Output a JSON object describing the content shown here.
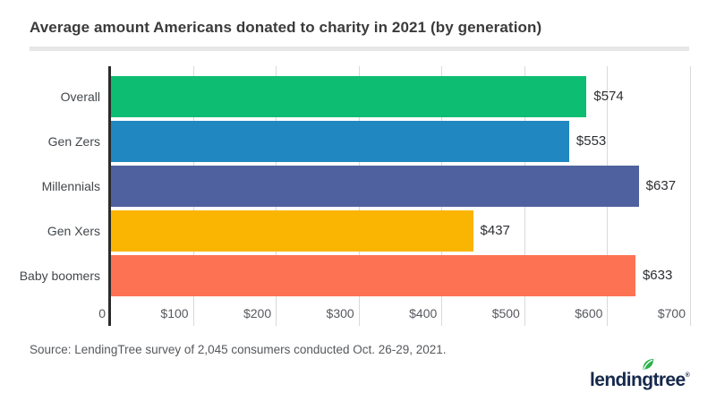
{
  "source_note": "Source: LendingTree survey of 2,045 consumers conducted Oct. 26-29, 2021.",
  "logo": {
    "text": "lendingtree",
    "registered": "®",
    "leaf_icon": "leaf-icon",
    "wordmark_color": "#16294c",
    "leaf_color": "#2bb24c"
  },
  "chart_data": {
    "type": "bar",
    "orientation": "horizontal",
    "title": "Average amount Americans donated to charity in 2021 (by generation)",
    "categories": [
      "Overall",
      "Gen Zers",
      "Millennials",
      "Gen Xers",
      "Baby boomers"
    ],
    "values": [
      574,
      553,
      637,
      437,
      633
    ],
    "value_labels": [
      "$574",
      "$553",
      "$637",
      "$437",
      "$633"
    ],
    "bar_colors": [
      "#0dbd72",
      "#2187c1",
      "#4f619e",
      "#fab402",
      "#fe7254"
    ],
    "x_ticks": [
      {
        "value": 0,
        "label": "0"
      },
      {
        "value": 100,
        "label": "$100"
      },
      {
        "value": 200,
        "label": "$200"
      },
      {
        "value": 300,
        "label": "$300"
      },
      {
        "value": 400,
        "label": "$400"
      },
      {
        "value": 500,
        "label": "$500"
      },
      {
        "value": 600,
        "label": "$600"
      },
      {
        "value": 700,
        "label": "$700"
      }
    ],
    "xlim": [
      0,
      700
    ],
    "xlabel": "",
    "ylabel": "",
    "grid": true,
    "legend": false,
    "axis_color": "#2b2b2b",
    "gridline_color": "#d9d9d9"
  }
}
